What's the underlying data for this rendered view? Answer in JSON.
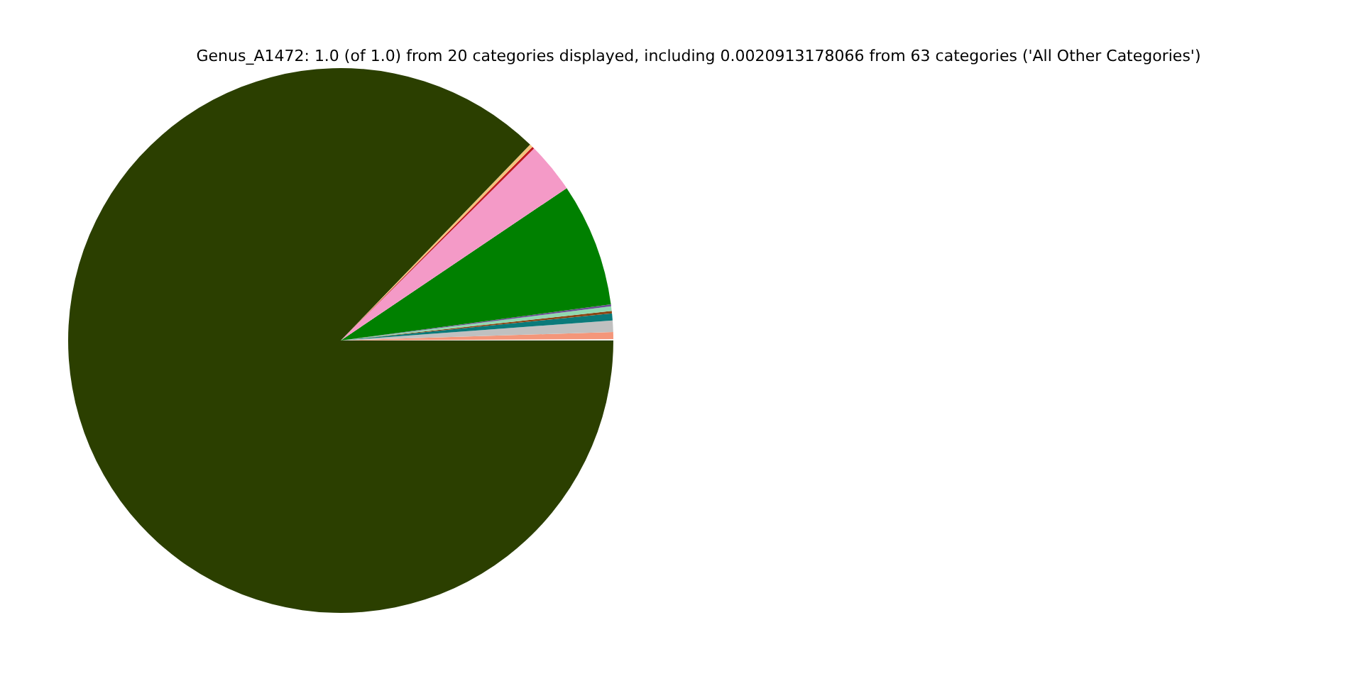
{
  "chart_data": {
    "type": "pie",
    "title": "Genus_A1472: 1.0 (of 1.0) from 20 categories displayed, including 0.0020913178066 from 63 categories ('All Other Categories')",
    "categories": [
      null,
      null,
      null,
      null,
      null,
      null,
      null,
      null,
      null,
      null,
      null,
      null
    ],
    "values": [
      0.08,
      0.42,
      0.67,
      0.42,
      0.14,
      0.28,
      0.11,
      7.33,
      3.0,
      0.14,
      0.19,
      87.22
    ],
    "colors": [
      "#f2f2f2",
      "#f4967a",
      "#c0c0c0",
      "#0a7a7a",
      "#8b4513",
      "#90d8b0",
      "#6a4c93",
      "#008000",
      "#f49ac7",
      "#c0181f",
      "#f4c27a",
      "#2b3f00"
    ]
  }
}
